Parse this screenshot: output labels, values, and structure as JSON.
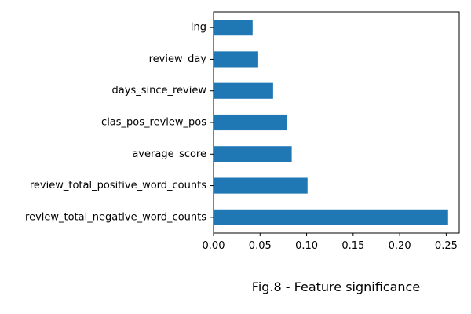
{
  "chart_data": {
    "type": "bar",
    "orientation": "horizontal",
    "categories": [
      "review_total_negative_word_counts",
      "review_total_positive_word_counts",
      "average_score",
      "clas_pos_review_pos",
      "days_since_review",
      "review_day",
      "lng"
    ],
    "values": [
      0.252,
      0.101,
      0.084,
      0.079,
      0.064,
      0.048,
      0.042
    ],
    "xticks": [
      "0.00",
      "0.05",
      "0.10",
      "0.15",
      "0.20",
      "0.25"
    ],
    "xtick_values": [
      0,
      0.05,
      0.1,
      0.15,
      0.2,
      0.25
    ],
    "xlim": [
      0,
      0.264
    ],
    "title": "",
    "xlabel": "",
    "ylabel": "",
    "bar_color": "#1f77b4",
    "grid": false
  },
  "caption": "Fig.8 - Feature significance"
}
